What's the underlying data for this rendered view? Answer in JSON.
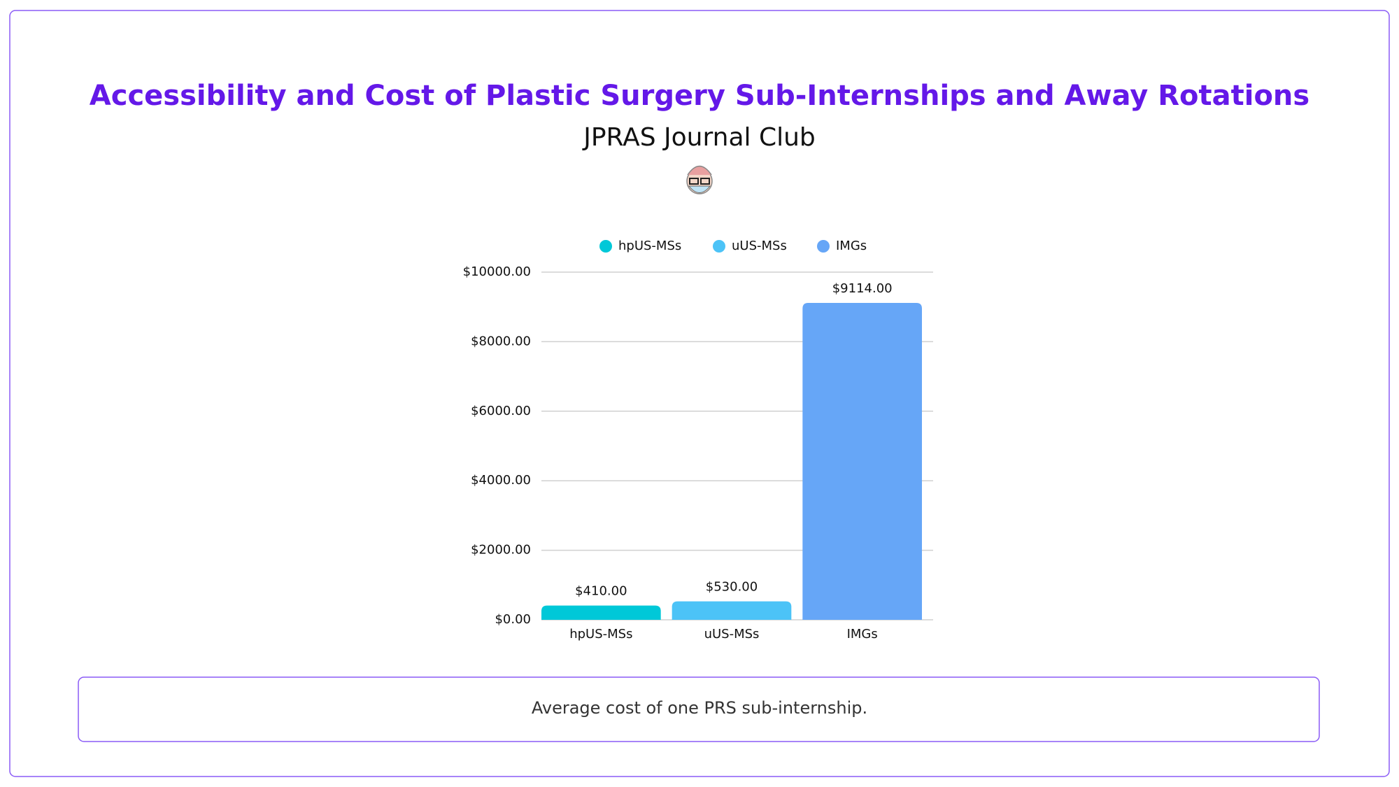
{
  "chart_data": {
    "type": "bar",
    "title": "Accessibility and Cost of Plastic Surgery Sub-Internships and Away Rotations",
    "subtitle": "JPRAS Journal Club",
    "categories": [
      "hpUS-MSs",
      "uUS-MSs",
      "IMGs"
    ],
    "values": [
      410,
      530,
      9114
    ],
    "value_labels": [
      "$410.00",
      "$530.00",
      "$9114.00"
    ],
    "colors": [
      "#00c8d8",
      "#4cc3f7",
      "#66a6f7"
    ],
    "ylim": [
      0,
      10000
    ],
    "yticks": [
      {
        "value": 0,
        "label": "$0.00"
      },
      {
        "value": 2000,
        "label": "$2000.00"
      },
      {
        "value": 4000,
        "label": "$4000.00"
      },
      {
        "value": 6000,
        "label": "$6000.00"
      },
      {
        "value": 8000,
        "label": "$8000.00"
      },
      {
        "value": 10000,
        "label": "$10000.00"
      }
    ],
    "grid": true,
    "legend": "top",
    "caption": "Average cost of one PRS sub-internship."
  }
}
